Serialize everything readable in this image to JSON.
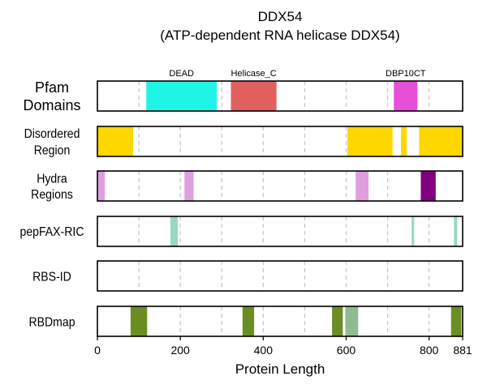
{
  "chart_data": {
    "type": "track",
    "title": "DDX54",
    "subtitle": "(ATP-dependent RNA helicase DDX54)",
    "xlabel": "Protein Length",
    "xlim": [
      0,
      881
    ],
    "xticks": [
      0,
      200,
      400,
      600,
      800,
      881
    ],
    "tracks": [
      {
        "label": "Pfam\nDomains",
        "segments": [
          {
            "start": 118,
            "end": 288,
            "color": "#1ff5e6",
            "label": "DEAD"
          },
          {
            "start": 322,
            "end": 432,
            "color": "#e06060",
            "label": "Helicase_C"
          },
          {
            "start": 715,
            "end": 772,
            "color": "#e64fd8",
            "label": "DBP10CT"
          }
        ]
      },
      {
        "label": "Disordered\nRegion",
        "segments": [
          {
            "start": 0,
            "end": 86,
            "color": "#ffd700"
          },
          {
            "start": 603,
            "end": 712,
            "color": "#ffd700"
          },
          {
            "start": 732,
            "end": 746,
            "color": "#ffd700"
          },
          {
            "start": 776,
            "end": 881,
            "color": "#ffd700"
          }
        ]
      },
      {
        "label": "Hydra\nRegions",
        "segments": [
          {
            "start": 0,
            "end": 18,
            "color": "#dda0dd"
          },
          {
            "start": 210,
            "end": 232,
            "color": "#dda0dd"
          },
          {
            "start": 623,
            "end": 654,
            "color": "#dda0dd"
          },
          {
            "start": 780,
            "end": 816,
            "color": "#800080"
          }
        ]
      },
      {
        "label": "pepFAX-RIC",
        "segments": [
          {
            "start": 176,
            "end": 194,
            "color": "#98d8c0"
          },
          {
            "start": 758,
            "end": 764,
            "color": "#98d8c0"
          },
          {
            "start": 860,
            "end": 868,
            "color": "#98d8c0"
          }
        ]
      },
      {
        "label": "RBS-ID",
        "segments": []
      },
      {
        "label": "RBDmap",
        "segments": [
          {
            "start": 80,
            "end": 120,
            "color": "#6b8e23"
          },
          {
            "start": 350,
            "end": 378,
            "color": "#6b8e23"
          },
          {
            "start": 566,
            "end": 592,
            "color": "#6b8e23"
          },
          {
            "start": 598,
            "end": 629,
            "color": "#8fbc8f"
          },
          {
            "start": 853,
            "end": 878,
            "color": "#6b8e23"
          }
        ]
      }
    ],
    "grid": true,
    "grid_x": [
      100,
      200,
      300,
      400,
      500,
      600,
      700,
      800
    ]
  }
}
